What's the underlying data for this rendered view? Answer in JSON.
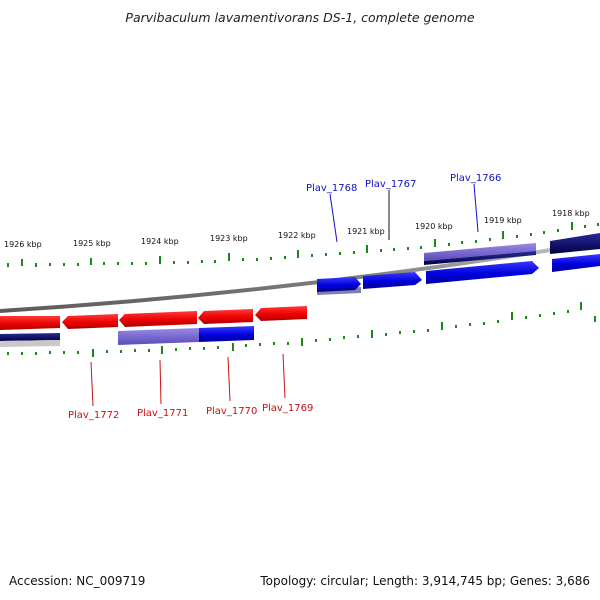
{
  "title": "Parvibaculum lavamentivorans DS-1, complete genome",
  "footer": {
    "accession": "Accession: NC_009719",
    "stats": "Topology: circular; Length: 3,914,745 bp; Genes: 3,686"
  },
  "colors": {
    "forward_gene": "#1010dd",
    "reverse_gene": "#e81010",
    "tick": "#1a8a1a",
    "backbone": "#777777",
    "forward_label": "#1010cc",
    "reverse_label": "#cc1010",
    "navy_bar": "#0a0a6a",
    "lavender_bar": "#7a6ad0"
  },
  "kbp_labels": [
    "1926 kbp",
    "1925 kbp",
    "1924 kbp",
    "1923 kbp",
    "1922 kbp",
    "1921 kbp",
    "1920 kbp",
    "1919 kbp",
    "1918 kbp"
  ],
  "genes_forward": [
    "Plav_1768",
    "Plav_1767",
    "Plav_1766"
  ],
  "genes_reverse": [
    "Plav_1772",
    "Plav_1771",
    "Plav_1770",
    "Plav_1769"
  ]
}
